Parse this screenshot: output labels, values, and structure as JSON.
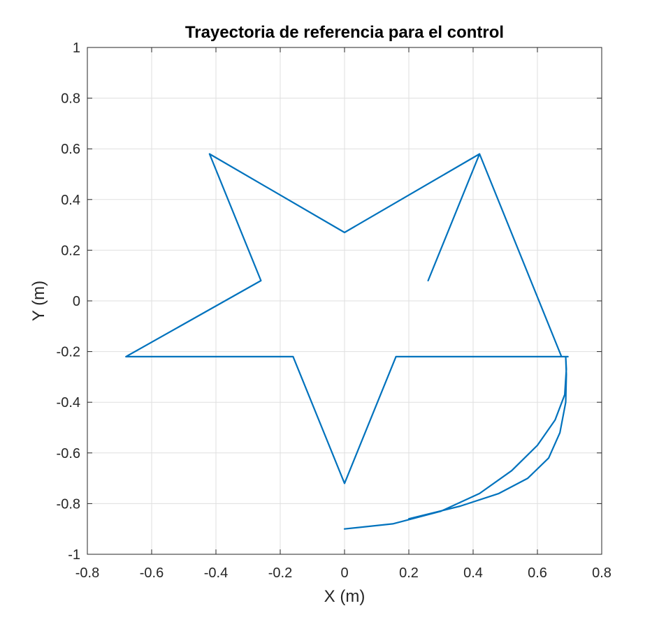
{
  "chart_data": {
    "type": "line",
    "title": "Trayectoria de referencia para el control",
    "xlabel": "X (m)",
    "ylabel": "Y (m)",
    "xlim": [
      -0.8,
      0.8
    ],
    "ylim": [
      -1,
      1
    ],
    "xticks": [
      -0.8,
      -0.6,
      -0.4,
      -0.2,
      0,
      0.2,
      0.4,
      0.6,
      0.8
    ],
    "xtick_labels": [
      "-0.8",
      "-0.6",
      "-0.4",
      "-0.2",
      "0",
      "0.2",
      "0.4",
      "0.6",
      "0.8"
    ],
    "yticks": [
      1,
      0.8,
      0.6,
      0.4,
      0.2,
      0,
      -0.2,
      -0.4,
      -0.6,
      -0.8,
      -1
    ],
    "ytick_labels": [
      "1",
      "0.8",
      "0.6",
      "0.4",
      "0.2",
      "0",
      "-0.2",
      "-0.4",
      "-0.6",
      "-0.8",
      "-1"
    ],
    "grid": true,
    "line_color": "#0072BD",
    "series": [
      {
        "x": [
          0.0,
          0.15,
          0.3,
          0.42,
          0.52,
          0.6,
          0.655,
          0.685,
          0.69,
          0.688,
          0.68,
          0.67,
          0.695,
          0.675,
          0.42,
          0.26,
          0.42,
          0.0,
          -0.42,
          -0.26,
          -0.68,
          -0.16,
          0.0,
          0.16,
          0.688,
          0.69,
          0.688,
          0.67,
          0.635,
          0.57,
          0.48,
          0.36,
          0.2
        ],
        "y": [
          -0.9,
          -0.88,
          -0.83,
          -0.76,
          -0.67,
          -0.57,
          -0.47,
          -0.37,
          -0.27,
          -0.22,
          -0.22,
          -0.22,
          -0.22,
          -0.22,
          0.58,
          0.08,
          0.58,
          0.27,
          0.58,
          0.08,
          -0.22,
          -0.22,
          -0.72,
          -0.22,
          -0.22,
          -0.29,
          -0.4,
          -0.52,
          -0.62,
          -0.7,
          -0.76,
          -0.81,
          -0.86
        ]
      }
    ]
  }
}
